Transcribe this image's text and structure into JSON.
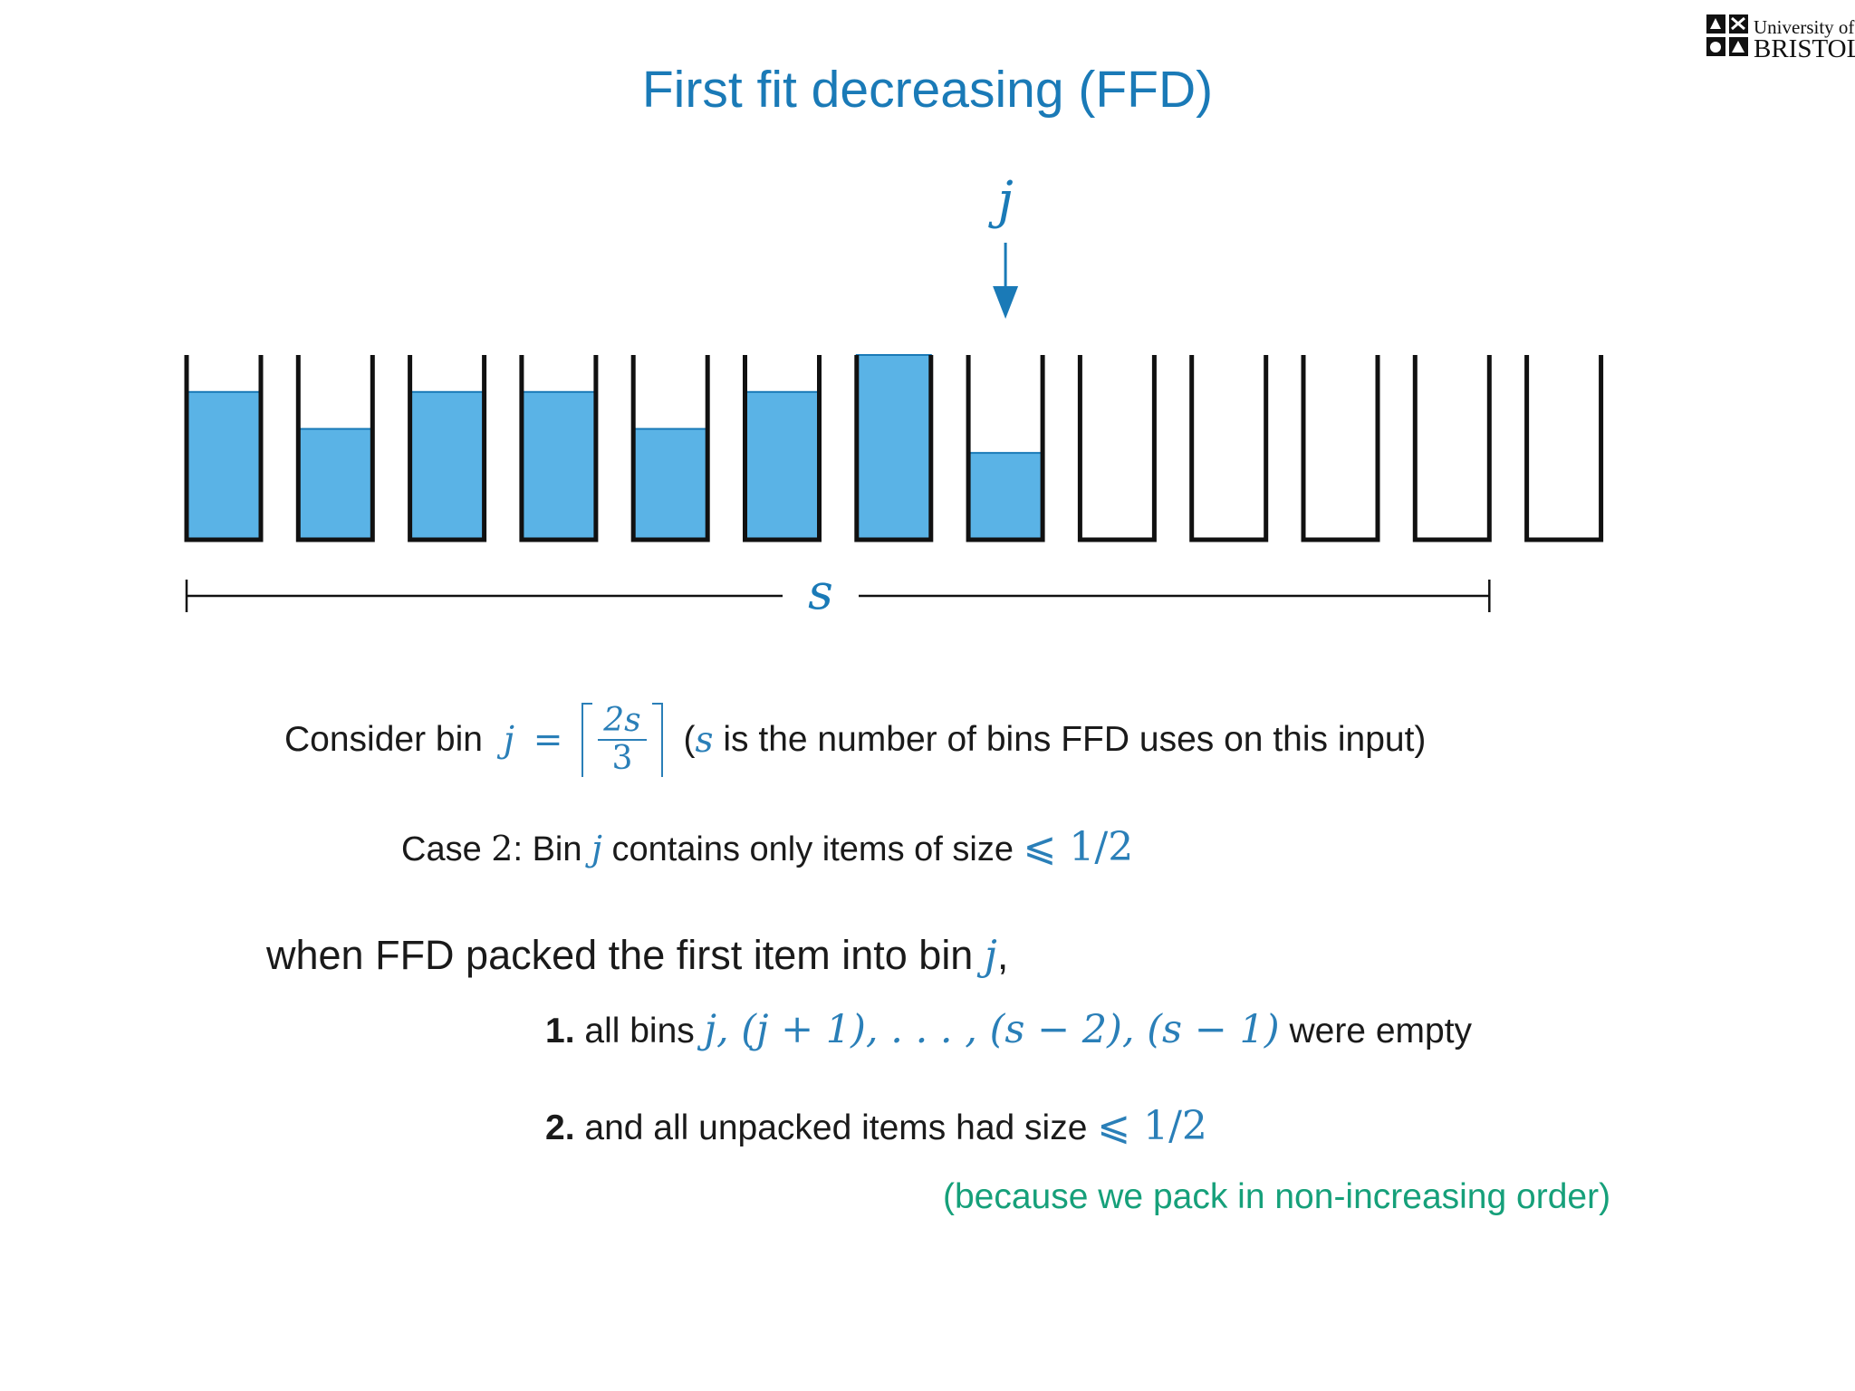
{
  "logo": {
    "line1": "University of",
    "line2": "BRISTOL"
  },
  "slide": {
    "title": "First fit decreasing (FFD)"
  },
  "diagram": {
    "pointer_label": "j",
    "pointer_bin_index": 7,
    "span_label": "s",
    "span_bins": 12,
    "fill_color": "#5ab3e6",
    "accent_color": "#1a7ab7",
    "bins": [
      {
        "fill": 0.8
      },
      {
        "fill": 0.6
      },
      {
        "fill": 0.8
      },
      {
        "fill": 0.8
      },
      {
        "fill": 0.6
      },
      {
        "fill": 0.8
      },
      {
        "fill": 1.0
      },
      {
        "fill": 0.47
      },
      {
        "fill": 0.0
      },
      {
        "fill": 0.0
      },
      {
        "fill": 0.0
      },
      {
        "fill": 0.0
      },
      {
        "fill": 0.0
      }
    ]
  },
  "text": {
    "consider_prefix": "Consider bin",
    "consider_var": "j",
    "consider_eq": "=",
    "frac_num": "2s",
    "frac_den": "3",
    "consider_open": "(",
    "consider_s": "s",
    "consider_rest": "is the number of bins FFD uses on this input)",
    "case_prefix": "Case",
    "case_num": "2",
    "case_mid": ": Bin",
    "case_var": "j",
    "case_rest": "contains only items of size",
    "case_bound": "⩽ 1/2",
    "when_text": "when FFD packed the first item into bin",
    "when_var": "j",
    "when_comma": ",",
    "item1_num": "1.",
    "item1_pre": "all bins",
    "item1_math": "j, (j + 1), . . . , (s − 2), (s − 1)",
    "item1_post": "were empty",
    "item2_num": "2.",
    "item2_pre": "and all unpacked items had size",
    "item2_bound": "⩽ 1/2",
    "because": "(because we pack in non-increasing order)"
  }
}
